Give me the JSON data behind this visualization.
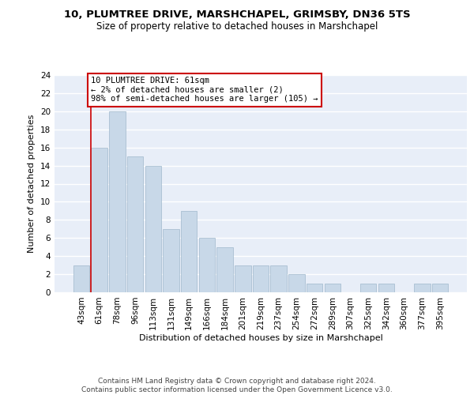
{
  "title1": "10, PLUMTREE DRIVE, MARSHCHAPEL, GRIMSBY, DN36 5TS",
  "title2": "Size of property relative to detached houses in Marshchapel",
  "xlabel": "Distribution of detached houses by size in Marshchapel",
  "ylabel": "Number of detached properties",
  "categories": [
    "43sqm",
    "61sqm",
    "78sqm",
    "96sqm",
    "113sqm",
    "131sqm",
    "149sqm",
    "166sqm",
    "184sqm",
    "201sqm",
    "219sqm",
    "237sqm",
    "254sqm",
    "272sqm",
    "289sqm",
    "307sqm",
    "325sqm",
    "342sqm",
    "360sqm",
    "377sqm",
    "395sqm"
  ],
  "values": [
    3,
    16,
    20,
    15,
    14,
    7,
    9,
    6,
    5,
    3,
    3,
    3,
    2,
    1,
    1,
    0,
    1,
    1,
    0,
    1,
    1
  ],
  "bar_color": "#c8d8e8",
  "bar_edge_color": "#a0b8cc",
  "bg_color": "#e8eef8",
  "grid_color": "#ffffff",
  "annotation_text": "10 PLUMTREE DRIVE: 61sqm\n← 2% of detached houses are smaller (2)\n98% of semi-detached houses are larger (105) →",
  "annotation_box_color": "#ffffff",
  "annotation_border_color": "#cc0000",
  "marker_line_color": "#cc0000",
  "ylim": [
    0,
    24
  ],
  "yticks": [
    0,
    2,
    4,
    6,
    8,
    10,
    12,
    14,
    16,
    18,
    20,
    22,
    24
  ],
  "footer": "Contains HM Land Registry data © Crown copyright and database right 2024.\nContains public sector information licensed under the Open Government Licence v3.0.",
  "title1_fontsize": 9.5,
  "title2_fontsize": 8.5,
  "xlabel_fontsize": 8,
  "ylabel_fontsize": 8,
  "tick_fontsize": 7.5,
  "annotation_fontsize": 7.5,
  "footer_fontsize": 6.5
}
